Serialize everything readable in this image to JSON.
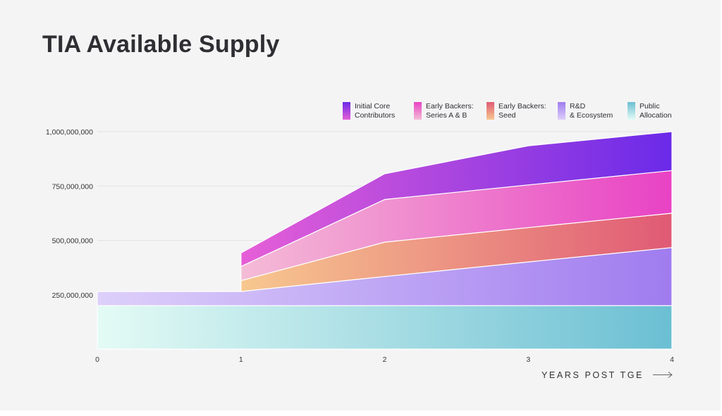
{
  "title": "TIA Available Supply",
  "chart_data": {
    "type": "area",
    "stacked": true,
    "title": "TIA Available Supply",
    "xlabel": "YEARS POST TGE",
    "ylabel": "",
    "x_ticks": [
      "0",
      "1",
      "2",
      "3",
      "4"
    ],
    "y_ticks": [
      "1,000,000,000",
      "750,000,000",
      "500,000,000",
      "250,000,000"
    ],
    "xlim": [
      0,
      4
    ],
    "ylim": [
      0,
      1000000000
    ],
    "grid": "horizontal",
    "legend_position": "top-right",
    "series": [
      {
        "name": "Public Allocation",
        "label_lines": [
          "Public",
          "Allocation"
        ],
        "color_from": "#e4fbf5",
        "color_to": "#6bbfd3",
        "points": [
          [
            0,
            200000000
          ],
          [
            4,
            200000000
          ]
        ]
      },
      {
        "name": "R&D & Ecosystem",
        "label_lines": [
          "R&D",
          "& Ecosystem"
        ],
        "color_from": "#ddd0fa",
        "color_to": "#a07cef",
        "points": [
          [
            0,
            65000000
          ],
          [
            1,
            65000000
          ],
          [
            2,
            134000000
          ],
          [
            3,
            201000000
          ],
          [
            4,
            267000000
          ]
        ]
      },
      {
        "name": "Early Backers: Seed",
        "label_lines": [
          "Early Backers:",
          "Seed"
        ],
        "color_from": "#f7c88f",
        "color_to": "#e05a75",
        "points": [
          [
            1,
            50000000
          ],
          [
            2,
            158000000
          ],
          [
            3,
            158000000
          ],
          [
            4,
            158000000
          ]
        ]
      },
      {
        "name": "Early Backers: Series A & B",
        "label_lines": [
          "Early Backers:",
          "Series A & B"
        ],
        "color_from": "#f4bcd6",
        "color_to": "#e842c4",
        "points": [
          [
            1,
            65000000
          ],
          [
            2,
            196000000
          ],
          [
            3,
            196000000
          ],
          [
            4,
            196000000
          ]
        ]
      },
      {
        "name": "Initial Core Contributors",
        "label_lines": [
          "Initial Core",
          "Contributors"
        ],
        "color_from": "#e65fd7",
        "color_to": "#6a2ae8",
        "points": [
          [
            1,
            62000000
          ],
          [
            2,
            118000000
          ],
          [
            3,
            180000000
          ],
          [
            4,
            179000000
          ]
        ]
      }
    ]
  }
}
